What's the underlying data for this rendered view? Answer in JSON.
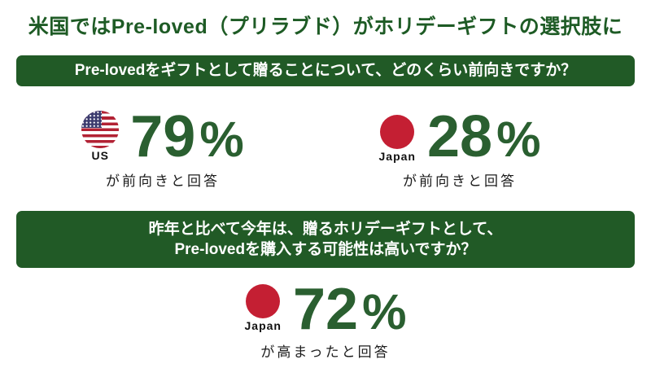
{
  "title": "米国ではPre-loved（プリラブド）がホリデーギフトの選択肢に",
  "colors": {
    "brand_green": "#215a26",
    "title_green": "#1e5b25",
    "number_green": "#2a5f30",
    "japan_flag_red": "#c41f33",
    "us_flag_red": "#b22234",
    "us_flag_blue": "#3c3b6e",
    "background": "#ffffff",
    "text_dark": "#1c1c1c"
  },
  "q1": {
    "banner": "Pre-lovedをギフトとして贈ることについて、どのくらい前向きですか？",
    "us": {
      "flag_icon": "us-flag-icon",
      "country": "US",
      "value": "79",
      "unit": "%",
      "caption": "が前向きと回答"
    },
    "japan": {
      "flag_icon": "japan-flag-icon",
      "country": "Japan",
      "value": "28",
      "unit": "%",
      "caption": "が前向きと回答"
    }
  },
  "q2": {
    "banner_line1": "昨年と比べて今年は、贈るホリデーギフトとして、",
    "banner_line2": "Pre-lovedを購入する可能性は高いですか？",
    "japan": {
      "flag_icon": "japan-flag-icon",
      "country": "Japan",
      "value": "72",
      "unit": "%",
      "caption": "が高まったと回答"
    }
  },
  "chart_data": [
    {
      "type": "table",
      "title": "Pre-lovedをギフトとして贈ることについて、どのくらい前向きですか？",
      "categories": [
        "US",
        "Japan"
      ],
      "values": [
        79,
        28
      ],
      "unit": "%",
      "note": "が前向きと回答"
    },
    {
      "type": "table",
      "title": "昨年と比べて今年は、贈るホリデーギフトとして、Pre-lovedを購入する可能性は高いですか？",
      "categories": [
        "Japan"
      ],
      "values": [
        72
      ],
      "unit": "%",
      "note": "が高まったと回答"
    }
  ]
}
